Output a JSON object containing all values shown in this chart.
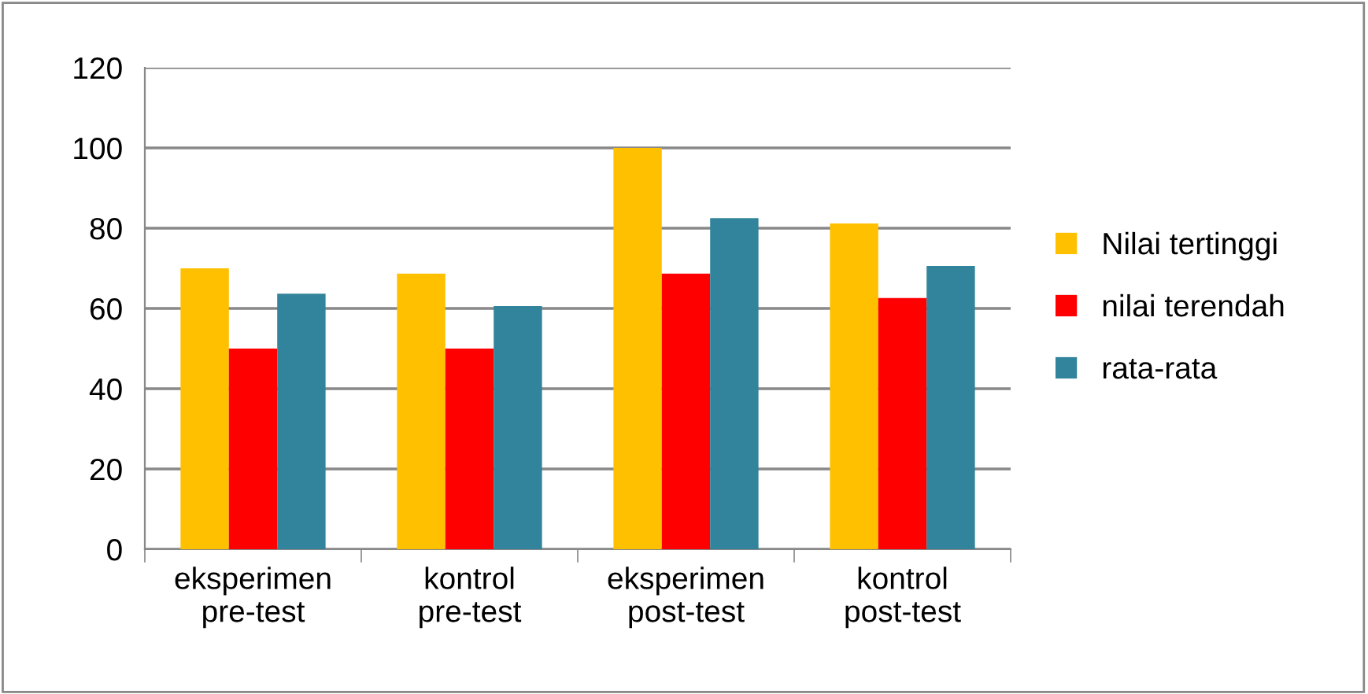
{
  "chart_data": {
    "type": "bar",
    "categories": [
      "eksperimen\npre-test",
      "kontrol\npre-test",
      "eksperimen\npost-test",
      "kontrol\npost-test"
    ],
    "series": [
      {
        "name": "Nilai tertinggi",
        "color": "#ffc000",
        "values": [
          70,
          68.7,
          100,
          81.2
        ]
      },
      {
        "name": "nilai terendah",
        "color": "#ff0000",
        "values": [
          50,
          50,
          68.7,
          62.6
        ]
      },
      {
        "name": "rata-rata",
        "color": "#31849b",
        "values": [
          63.7,
          60.6,
          82.5,
          70.6
        ]
      }
    ],
    "ylim": [
      0,
      120
    ],
    "yticks": [
      0,
      20,
      40,
      60,
      80,
      100,
      120
    ],
    "grid": "y",
    "legend": "right"
  }
}
